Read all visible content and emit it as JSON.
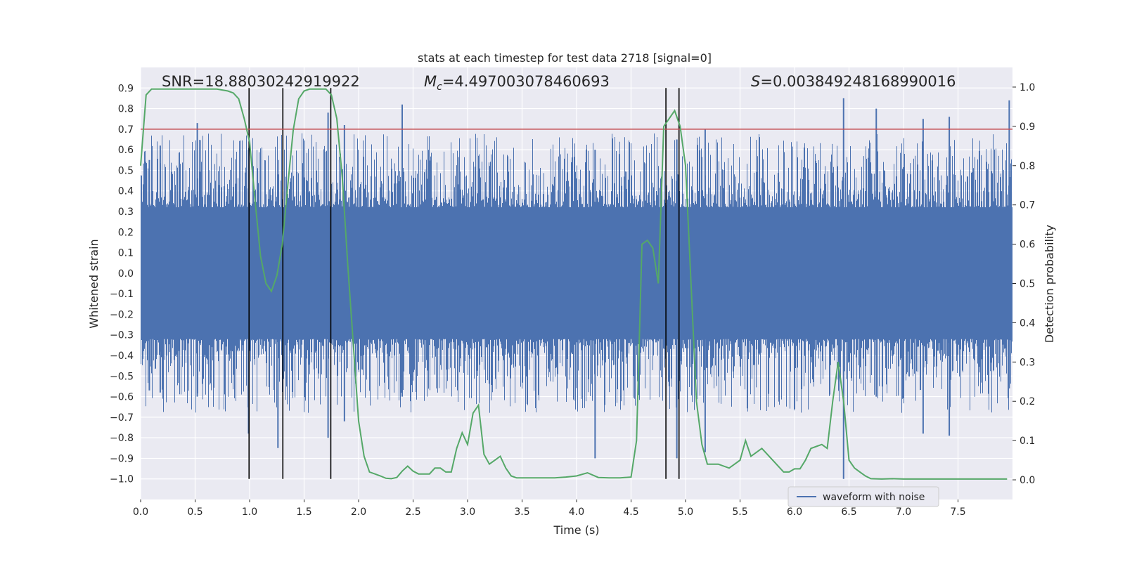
{
  "chart_data": {
    "type": "line",
    "title": "stats at each timestep for test data 2718 [signal=0]",
    "xlabel": "Time (s)",
    "ylabel_left": "Whitened strain",
    "ylabel_right": "Detection probability",
    "xlim": [
      0,
      8
    ],
    "ylim_left": [
      -1.1,
      1.0
    ],
    "ylim_right": [
      -0.05,
      1.05
    ],
    "x_ticks": [
      0.0,
      0.5,
      1.0,
      1.5,
      2.0,
      2.5,
      3.0,
      3.5,
      4.0,
      4.5,
      5.0,
      5.5,
      6.0,
      6.5,
      7.0,
      7.5
    ],
    "x_tick_labels": [
      "0.0",
      "0.5",
      "1.0",
      "1.5",
      "2.0",
      "2.5",
      "3.0",
      "3.5",
      "4.0",
      "4.5",
      "5.0",
      "5.5",
      "6.0",
      "6.5",
      "7.0",
      "7.5"
    ],
    "y_left_ticks": [
      0.9,
      0.8,
      0.7,
      0.6,
      0.5,
      0.4,
      0.3,
      0.2,
      0.1,
      0.0,
      -0.1,
      -0.2,
      -0.3,
      -0.4,
      -0.5,
      -0.6,
      -0.7,
      -0.8,
      -0.9,
      -1.0
    ],
    "y_left_tick_labels": [
      "0.9",
      "0.8",
      "0.7",
      "0.6",
      "0.5",
      "0.4",
      "0.3",
      "0.2",
      "0.1",
      "0.0",
      "−0.1",
      "−0.2",
      "−0.3",
      "−0.4",
      "−0.5",
      "−0.6",
      "−0.7",
      "−0.8",
      "−0.9",
      "−1.0"
    ],
    "y_right_ticks": [
      1.0,
      0.9,
      0.8,
      0.7,
      0.6,
      0.5,
      0.4,
      0.3,
      0.2,
      0.1,
      0.0
    ],
    "y_right_tick_labels": [
      "1.0",
      "0.9",
      "0.8",
      "0.7",
      "0.6",
      "0.5",
      "0.4",
      "0.3",
      "0.2",
      "0.1",
      "0.0"
    ],
    "grid": true,
    "legend": {
      "placement": "bottom-right",
      "entries": [
        "waveform with noise"
      ]
    },
    "annotations": {
      "snr": "SNR=18.88030242919922",
      "mc_symbol": "M",
      "mc_subscript": "c",
      "mc_value": "=4.497003078460693",
      "s_symbol": "S",
      "s_value": "=0.003849248168990016"
    },
    "waveform": {
      "name": "waveform with noise",
      "color": "#4c72b0",
      "core_band": [
        -0.32,
        0.32
      ],
      "extreme_peaks": [
        {
          "t": 0.08,
          "min": -0.57,
          "max": 0.55
        },
        {
          "t": 0.18,
          "min": -0.58,
          "max": 0.62
        },
        {
          "t": 0.52,
          "min": -0.6,
          "max": 0.73
        },
        {
          "t": 0.99,
          "min": -0.78,
          "max": 0.6
        },
        {
          "t": 1.26,
          "min": -0.85,
          "max": 0.48
        },
        {
          "t": 1.72,
          "min": -0.8,
          "max": 0.78
        },
        {
          "t": 1.87,
          "min": -0.72,
          "max": 0.72
        },
        {
          "t": 2.4,
          "min": -0.6,
          "max": 0.82
        },
        {
          "t": 4.17,
          "min": -0.9,
          "max": 0.6
        },
        {
          "t": 4.92,
          "min": -0.9,
          "max": 0.65
        },
        {
          "t": 5.18,
          "min": -0.87,
          "max": 0.7
        },
        {
          "t": 6.45,
          "min": -1.0,
          "max": 0.85
        },
        {
          "t": 6.75,
          "min": -0.6,
          "max": 0.8
        },
        {
          "t": 7.18,
          "min": -0.78,
          "max": 0.75
        },
        {
          "t": 7.42,
          "min": -0.79,
          "max": 0.76
        },
        {
          "t": 7.97,
          "min": -0.56,
          "max": 0.84
        }
      ]
    },
    "detection_probability": {
      "color": "#55a868",
      "x": [
        0.0,
        0.05,
        0.1,
        0.2,
        0.3,
        0.4,
        0.5,
        0.6,
        0.7,
        0.8,
        0.85,
        0.9,
        0.95,
        1.0,
        1.05,
        1.1,
        1.15,
        1.2,
        1.25,
        1.3,
        1.35,
        1.4,
        1.45,
        1.5,
        1.55,
        1.6,
        1.65,
        1.7,
        1.75,
        1.8,
        1.85,
        1.9,
        1.95,
        2.0,
        2.05,
        2.1,
        2.15,
        2.2,
        2.25,
        2.3,
        2.35,
        2.4,
        2.45,
        2.5,
        2.55,
        2.6,
        2.65,
        2.7,
        2.75,
        2.8,
        2.85,
        2.9,
        2.95,
        3.0,
        3.05,
        3.1,
        3.15,
        3.2,
        3.25,
        3.3,
        3.35,
        3.4,
        3.45,
        3.5,
        3.6,
        3.7,
        3.8,
        3.9,
        4.0,
        4.1,
        4.2,
        4.3,
        4.4,
        4.5,
        4.55,
        4.6,
        4.65,
        4.7,
        4.75,
        4.8,
        4.85,
        4.9,
        4.95,
        5.0,
        5.05,
        5.1,
        5.15,
        5.2,
        5.3,
        5.4,
        5.5,
        5.55,
        5.6,
        5.7,
        5.8,
        5.9,
        5.95,
        6.0,
        6.05,
        6.1,
        6.15,
        6.2,
        6.25,
        6.3,
        6.35,
        6.4,
        6.45,
        6.5,
        6.55,
        6.6,
        6.65,
        6.7,
        6.8,
        6.9,
        7.0,
        7.2,
        7.4,
        7.6,
        7.8,
        7.95
      ],
      "y": [
        0.8,
        0.98,
        0.995,
        0.995,
        0.995,
        0.995,
        0.995,
        0.995,
        0.995,
        0.99,
        0.985,
        0.97,
        0.92,
        0.86,
        0.71,
        0.57,
        0.5,
        0.48,
        0.52,
        0.6,
        0.75,
        0.89,
        0.97,
        0.99,
        0.995,
        0.995,
        0.995,
        0.995,
        0.98,
        0.92,
        0.77,
        0.55,
        0.35,
        0.15,
        0.06,
        0.02,
        0.015,
        0.01,
        0.004,
        0.003,
        0.006,
        0.022,
        0.035,
        0.022,
        0.015,
        0.015,
        0.015,
        0.03,
        0.03,
        0.02,
        0.02,
        0.08,
        0.12,
        0.09,
        0.17,
        0.19,
        0.065,
        0.04,
        0.05,
        0.06,
        0.03,
        0.01,
        0.005,
        0.005,
        0.005,
        0.005,
        0.005,
        0.007,
        0.01,
        0.018,
        0.006,
        0.005,
        0.005,
        0.007,
        0.1,
        0.6,
        0.61,
        0.59,
        0.5,
        0.9,
        0.92,
        0.94,
        0.9,
        0.8,
        0.5,
        0.2,
        0.09,
        0.04,
        0.04,
        0.03,
        0.05,
        0.1,
        0.06,
        0.08,
        0.05,
        0.02,
        0.02,
        0.028,
        0.028,
        0.05,
        0.08,
        0.085,
        0.09,
        0.08,
        0.2,
        0.3,
        0.2,
        0.05,
        0.03,
        0.02,
        0.01,
        0.003,
        0.002,
        0.003,
        0.002,
        0.002,
        0.002,
        0.002,
        0.002,
        0.002
      ]
    },
    "threshold": {
      "value": 0.7,
      "color": "#c44e52"
    },
    "marker_lines": {
      "times": [
        0.995,
        1.305,
        1.745,
        4.82,
        4.94
      ],
      "y_from": -1.0,
      "y_to": 0.9,
      "color": "#000000"
    }
  }
}
